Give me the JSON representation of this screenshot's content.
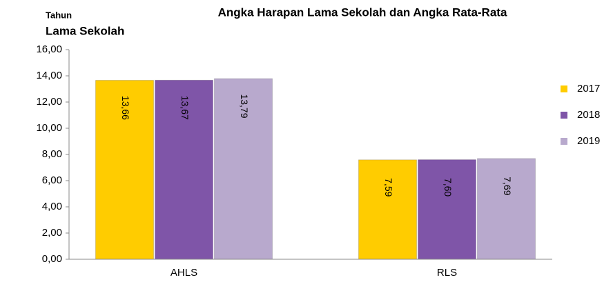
{
  "chart_data": {
    "type": "bar",
    "title": "Angka Harapan Lama Sekolah dan Angka Rata-Rata",
    "ylabel": [
      "Tahun",
      "Lama Sekolah"
    ],
    "categories": [
      "AHLS",
      "RLS"
    ],
    "series": [
      {
        "name": "2017",
        "color": "#ffcc00",
        "values": [
          13.66,
          7.59
        ],
        "value_labels": [
          "13,66",
          "7,59"
        ]
      },
      {
        "name": "2018",
        "color": "#7f55a8",
        "values": [
          13.67,
          7.6
        ],
        "value_labels": [
          "13,67",
          "7,60"
        ]
      },
      {
        "name": "2019",
        "color": "#b8a9cd",
        "values": [
          13.79,
          7.69
        ],
        "value_labels": [
          "13,79",
          "7,69"
        ]
      }
    ],
    "ylim": [
      0,
      16
    ],
    "yticks": [
      {
        "value": 0,
        "label": "0,00"
      },
      {
        "value": 2,
        "label": "2,00"
      },
      {
        "value": 4,
        "label": "4,00"
      },
      {
        "value": 6,
        "label": "6,00"
      },
      {
        "value": 8,
        "label": "8,00"
      },
      {
        "value": 10,
        "label": "10,00"
      },
      {
        "value": 12,
        "label": "12,00"
      },
      {
        "value": 14,
        "label": "14,00"
      },
      {
        "value": 16,
        "label": "16,00"
      }
    ],
    "grid": false,
    "legend": "right"
  }
}
